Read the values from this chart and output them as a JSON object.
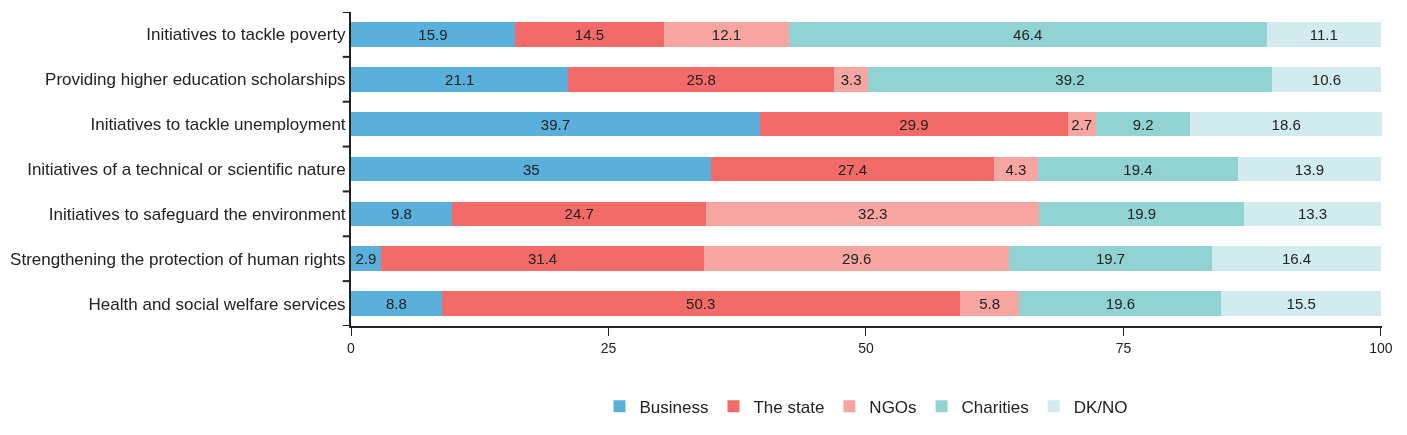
{
  "chart_data": {
    "type": "bar",
    "orientation": "horizontal",
    "stacked": true,
    "data_labels": true,
    "legend": "bottom",
    "categories": [
      "Initiatives to tackle poverty",
      "Providing higher education scholarships",
      "Initiatives to tackle unemployment",
      "Initiatives of a technical or scientific nature",
      "Initiatives to safeguard the environment",
      "Strengthening the protection of human rights",
      "Health and social welfare services"
    ],
    "series": [
      {
        "name": "Business",
        "color": "#5aafdb",
        "values": [
          15.9,
          21.1,
          39.7,
          35,
          9.8,
          2.9,
          8.8
        ]
      },
      {
        "name": "The state",
        "color": "#f26b68",
        "values": [
          14.5,
          25.8,
          29.9,
          27.4,
          24.7,
          31.4,
          50.3
        ]
      },
      {
        "name": "NGOs",
        "color": "#f7a5a0",
        "values": [
          12.1,
          3.3,
          2.7,
          4.3,
          32.3,
          29.6,
          5.8
        ]
      },
      {
        "name": "Charities",
        "color": "#91d3d2",
        "values": [
          46.4,
          39.2,
          9.2,
          19.4,
          19.9,
          19.7,
          19.6
        ]
      },
      {
        "name": "DK/NO",
        "color": "#d2ebee",
        "values": [
          11.1,
          10.6,
          18.6,
          13.9,
          13.3,
          16.4,
          15.5
        ]
      }
    ],
    "xlim": [
      0,
      100.1
    ],
    "xticks": [
      0,
      25,
      50,
      75,
      100
    ]
  }
}
